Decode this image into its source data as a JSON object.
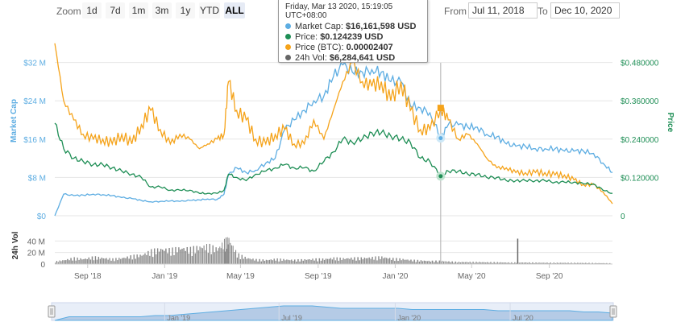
{
  "toolbar": {
    "zoom_label": "Zoom",
    "buttons": [
      "1d",
      "7d",
      "1m",
      "3m",
      "1y",
      "YTD",
      "ALL"
    ],
    "active": "ALL",
    "from_label": "From",
    "from_value": "Jul 11, 2018",
    "to_label": "To",
    "to_value": "Dec 10, 2020"
  },
  "tooltip": {
    "header": "Friday, Mar 13 2020, 15:19:05 UTC+08:00",
    "rows": [
      {
        "label": "Market Cap:",
        "value": "$16,161,598 USD",
        "color": "#5DADE2"
      },
      {
        "label": "Price:",
        "value": "$0.124239 USD",
        "color": "#1E8E55"
      },
      {
        "label": "Price (BTC):",
        "value": "0.00002407",
        "color": "#F5A31A"
      },
      {
        "label": "24h Vol:",
        "value": "$6,284,641 USD",
        "color": "#666666"
      }
    ]
  },
  "colors": {
    "market_cap": "#5DADE2",
    "price": "#1E8E55",
    "price_btc": "#F5A31A",
    "volume": "#888888"
  },
  "chart_data": {
    "type": "line",
    "x_ticks": [
      "Sep '18",
      "Jan '19",
      "May '19",
      "Sep '19",
      "Jan '20",
      "May '20",
      "Sep '20"
    ],
    "navigator_ticks": [
      "Jan '19",
      "Jul '19",
      "Jan '20",
      "Jul '20"
    ],
    "left_axis": {
      "label": "Market Cap",
      "ticks": [
        "$0",
        "$8 M",
        "$16 M",
        "$24 M",
        "$32 M"
      ],
      "range": [
        0,
        40
      ]
    },
    "right_axis": {
      "label": "Price",
      "ticks": [
        "0",
        "$0.120000",
        "$0.240000",
        "$0.360000",
        "$0.480000"
      ],
      "range": [
        0,
        0.6
      ]
    },
    "volume_axis": {
      "label": "24h Vol",
      "ticks": [
        "0",
        "20 M",
        "40 M"
      ],
      "range": [
        0,
        60
      ]
    },
    "dates": [
      "2018-07-11",
      "2018-07-25",
      "2018-08-10",
      "2018-08-25",
      "2018-09-10",
      "2018-09-25",
      "2018-10-10",
      "2018-10-25",
      "2018-11-10",
      "2018-11-25",
      "2018-12-10",
      "2018-12-25",
      "2019-01-10",
      "2019-01-25",
      "2019-02-10",
      "2019-02-25",
      "2019-03-10",
      "2019-03-25",
      "2019-04-05",
      "2019-04-12",
      "2019-04-25",
      "2019-05-10",
      "2019-05-25",
      "2019-06-10",
      "2019-06-25",
      "2019-07-10",
      "2019-07-25",
      "2019-08-10",
      "2019-08-25",
      "2019-09-10",
      "2019-09-25",
      "2019-10-10",
      "2019-10-25",
      "2019-11-10",
      "2019-11-25",
      "2019-12-10",
      "2019-12-25",
      "2020-01-10",
      "2020-01-25",
      "2020-02-10",
      "2020-02-25",
      "2020-03-13",
      "2020-03-25",
      "2020-04-10",
      "2020-04-25",
      "2020-05-10",
      "2020-05-25",
      "2020-06-10",
      "2020-06-25",
      "2020-07-10",
      "2020-07-25",
      "2020-08-10",
      "2020-08-25",
      "2020-09-10",
      "2020-09-25",
      "2020-10-10",
      "2020-10-25",
      "2020-11-10",
      "2020-11-25",
      "2020-12-10"
    ],
    "series": [
      {
        "name": "Market Cap",
        "axis": "left",
        "values": [
          0,
          4.5,
          4.2,
          4.3,
          4.5,
          4.4,
          4.2,
          3.8,
          3.6,
          3.2,
          2.9,
          3.0,
          3.1,
          3.0,
          3.2,
          3.3,
          3.5,
          3.4,
          4.5,
          8.5,
          10.0,
          9.0,
          9.5,
          11.0,
          12.0,
          18.0,
          20.0,
          22.0,
          24.0,
          25.0,
          29.0,
          31.5,
          30.0,
          30.0,
          30.5,
          30.0,
          28.0,
          28.0,
          23.0,
          22.5,
          21.5,
          16.2,
          19.0,
          19.0,
          18.5,
          18.5,
          17.0,
          16.5,
          15.0,
          14.5,
          14.5,
          14.0,
          14.0,
          14.0,
          13.5,
          13.5,
          13.5,
          13.0,
          11.0,
          9.0
        ]
      },
      {
        "name": "Price",
        "axis": "right",
        "values": [
          0.29,
          0.21,
          0.18,
          0.17,
          0.16,
          0.16,
          0.15,
          0.14,
          0.13,
          0.12,
          0.09,
          0.09,
          0.08,
          0.08,
          0.08,
          0.07,
          0.07,
          0.07,
          0.08,
          0.13,
          0.12,
          0.11,
          0.13,
          0.14,
          0.15,
          0.16,
          0.15,
          0.15,
          0.14,
          0.17,
          0.2,
          0.24,
          0.23,
          0.24,
          0.26,
          0.26,
          0.25,
          0.24,
          0.23,
          0.18,
          0.17,
          0.124,
          0.14,
          0.14,
          0.13,
          0.13,
          0.12,
          0.12,
          0.11,
          0.11,
          0.11,
          0.11,
          0.11,
          0.105,
          0.105,
          0.105,
          0.1,
          0.1,
          0.08,
          0.07
        ]
      },
      {
        "name": "Price (BTC)",
        "axis": "left",
        "values": [
          36,
          24,
          20,
          17,
          16,
          16,
          15,
          17,
          15,
          19,
          22,
          18,
          15,
          17,
          16,
          14,
          15,
          16,
          17,
          28,
          22,
          20,
          16,
          15,
          17,
          18,
          15,
          15,
          20,
          16,
          22,
          28,
          32,
          28,
          27,
          28,
          24,
          28,
          22,
          18,
          18,
          22.5,
          20,
          16,
          17,
          15,
          12,
          10,
          10,
          9,
          9,
          9,
          9,
          8.5,
          8.5,
          7.5,
          6.5,
          6.5,
          5,
          2.5
        ]
      }
    ],
    "volume": [
      5,
      8,
      12,
      10,
      14,
      12,
      10,
      12,
      16,
      18,
      26,
      30,
      28,
      32,
      30,
      34,
      36,
      30,
      44,
      50,
      20,
      12,
      9,
      8,
      10,
      9,
      8,
      9,
      10,
      10,
      12,
      11,
      12,
      12,
      13,
      14,
      11,
      10,
      8,
      7,
      6,
      6.3,
      5,
      4,
      4,
      4,
      3.5,
      3.5,
      3,
      3,
      3,
      2.8,
      2.6,
      2.5,
      2.5,
      2.4,
      2.2,
      2,
      1.8,
      1.5
    ],
    "volume_spike": {
      "date": "2020-07-12",
      "value": 44
    },
    "navigator": {
      "values": [
        0,
        3,
        3,
        3,
        3,
        3,
        3,
        4,
        4,
        5,
        6,
        7,
        8,
        9,
        10,
        11,
        12,
        12,
        12,
        11,
        10,
        10,
        10,
        10,
        10,
        9,
        9,
        9,
        9,
        9,
        9,
        8,
        8,
        8,
        8,
        8,
        8,
        7,
        7,
        6
      ]
    }
  }
}
